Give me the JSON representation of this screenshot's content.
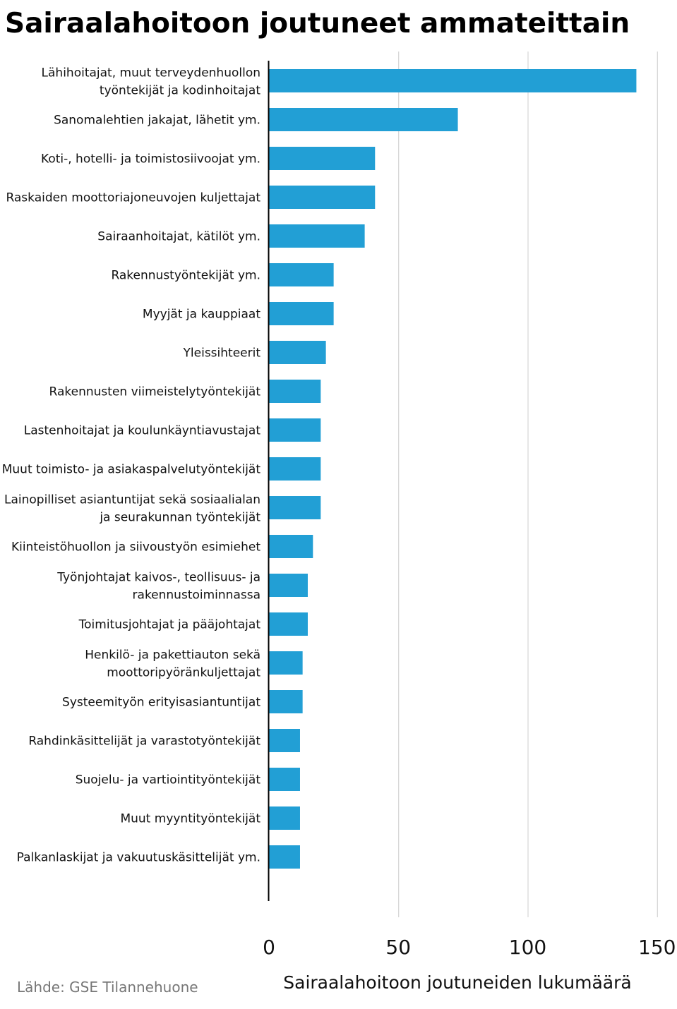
{
  "chart_data": {
    "type": "bar",
    "orientation": "horizontal",
    "title": "Sairaalahoitoon joutuneet ammateittain",
    "xlabel": "Sairaalahoitoon joutuneiden lukumäärä",
    "ylabel": "",
    "xlim": [
      0,
      150
    ],
    "xticks": [
      0,
      50,
      100,
      150
    ],
    "grid": true,
    "bar_color": "#229fd5",
    "categories": [
      [
        "Lähihoitajat, muut terveydenhuollon",
        "työntekijät ja kodinhoitajat"
      ],
      [
        "Sanomalehtien jakajat, lähetit ym."
      ],
      [
        "Koti-, hotelli- ja toimistosiivoojat ym."
      ],
      [
        "Raskaiden moottoriajoneuvojen kuljettajat"
      ],
      [
        "Sairaanhoitajat, kätilöt ym."
      ],
      [
        "Rakennustyöntekijät ym."
      ],
      [
        "Myyjät ja kauppiaat"
      ],
      [
        "Yleissihteerit"
      ],
      [
        "Rakennusten viimeistelytyöntekijät"
      ],
      [
        "Lastenhoitajat ja koulunkäyntiavustajat"
      ],
      [
        "Muut toimisto- ja asiakaspalvelutyöntekijät"
      ],
      [
        "Lainopilliset asiantuntijat sekä sosiaalialan",
        "ja seurakunnan työntekijät"
      ],
      [
        "Kiinteistöhuollon ja siivoustyön esimiehet"
      ],
      [
        "Työnjohtajat kaivos-, teollisuus- ja",
        "rakennustoiminnassa"
      ],
      [
        "Toimitusjohtajat ja pääjohtajat"
      ],
      [
        "Henkilö- ja pakettiauton sekä",
        "moottoripyöränkuljettajat"
      ],
      [
        "Systeemityön erityisasiantuntijat"
      ],
      [
        "Rahdinkäsittelijät ja varastotyöntekijät"
      ],
      [
        "Suojelu- ja vartiointityöntekijät"
      ],
      [
        "Muut myyntityöntekijät"
      ],
      [
        "Palkanlaskijat ja vakuutuskäsittelijät ym."
      ]
    ],
    "values": [
      142,
      73,
      41,
      41,
      37,
      25,
      25,
      22,
      20,
      20,
      20,
      20,
      17,
      15,
      15,
      13,
      13,
      12,
      12,
      12,
      12
    ]
  },
  "source": "Lähde: GSE Tilannehuone"
}
